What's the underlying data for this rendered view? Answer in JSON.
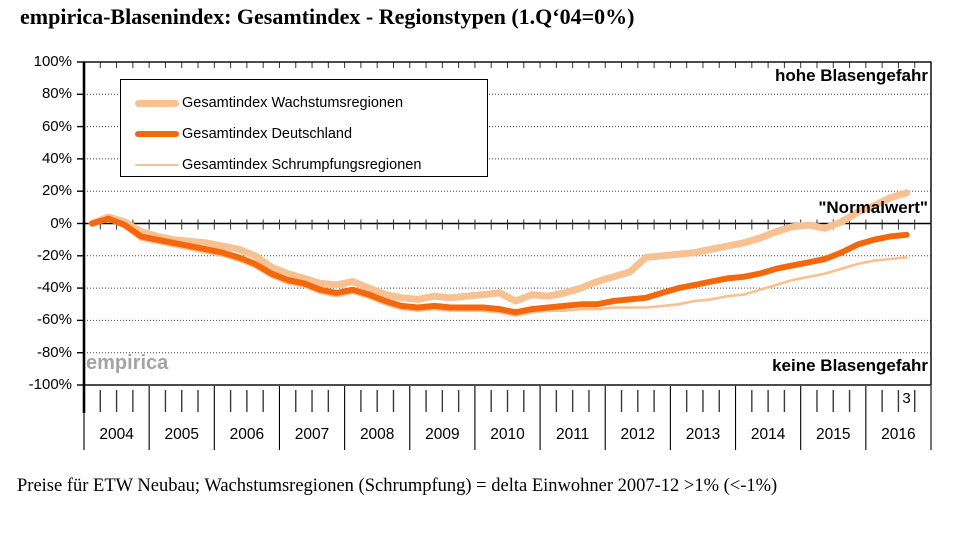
{
  "title": "empirica-Blasenindex: Gesamtindex - Regionstypen (1.Q‘04=0%)",
  "footnote": "Preise für ETW Neubau; Wachstumsregionen (Schrumpfung) = delta Einwohner 2007-12 >1% (<-1%)",
  "watermark": "empirica",
  "annotations": {
    "top_right": "hohe Blasengefahr",
    "normal_value": "\"Normalwert\"",
    "bottom_right": "keine Blasengefahr",
    "last_quarter_label": "3"
  },
  "chart_data": {
    "type": "line",
    "title": "empirica-Blasenindex: Gesamtindex - Regionstypen (1.Q‘04=0%)",
    "x_unit": "quarters",
    "x_start": "2004 Q1",
    "x_end": "2016 Q3",
    "year_labels": [
      "2004",
      "2005",
      "2006",
      "2007",
      "2008",
      "2009",
      "2010",
      "2011",
      "2012",
      "2013",
      "2014",
      "2015",
      "2016"
    ],
    "y_tick_labels": [
      "100%",
      "80%",
      "60%",
      "40%",
      "20%",
      "0%",
      "-20%",
      "-40%",
      "-60%",
      "-80%",
      "-100%"
    ],
    "ylim": [
      -100,
      100
    ],
    "ytick_step": 20,
    "grid": "horizontal dotted, solid zero line",
    "legend_position": "top-left box",
    "series": [
      {
        "name": "Gesamtindex Wachstumsregionen",
        "color": "#F8C191",
        "width": 7,
        "values": [
          0,
          4,
          1,
          -5,
          -8,
          -10,
          -11,
          -12,
          -14,
          -16,
          -20,
          -27,
          -31,
          -34,
          -37,
          -38,
          -36,
          -40,
          -44,
          -46,
          -47,
          -45,
          -46,
          -45,
          -44,
          -43,
          -48,
          -44,
          -45,
          -43,
          -40,
          -36,
          -33,
          -30,
          -21,
          -20,
          -19,
          -18,
          -16,
          -14,
          -12,
          -9,
          -5,
          -2,
          -1,
          -3,
          1,
          7,
          11,
          16,
          19
        ]
      },
      {
        "name": "Gesamtindex Deutschland",
        "color": "#F3680D",
        "width": 6,
        "values": [
          0,
          3,
          -1,
          -8,
          -10,
          -12,
          -14,
          -16,
          -18,
          -21,
          -25,
          -31,
          -35,
          -37,
          -41,
          -43,
          -41,
          -44,
          -48,
          -51,
          -52,
          -51,
          -52,
          -52,
          -52,
          -53,
          -55,
          -53,
          -52,
          -51,
          -50,
          -50,
          -48,
          -47,
          -46,
          -43,
          -40,
          -38,
          -36,
          -34,
          -33,
          -31,
          -28,
          -26,
          -24,
          -22,
          -18,
          -13,
          -10,
          -8,
          -7
        ]
      },
      {
        "name": "Gesamtindex Schrumpfungsregionen",
        "color": "#F8C191",
        "width": 2.6,
        "values": [
          0,
          2,
          -2,
          -10,
          -12,
          -14,
          -16,
          -18,
          -20,
          -23,
          -27,
          -33,
          -37,
          -39,
          -43,
          -45,
          -43,
          -46,
          -50,
          -53,
          -54,
          -53,
          -54,
          -54,
          -54,
          -55,
          -57,
          -55,
          -54,
          -54,
          -53,
          -53,
          -52,
          -52,
          -52,
          -51,
          -50,
          -48,
          -47,
          -45,
          -44,
          -41,
          -38,
          -35,
          -33,
          -31,
          -28,
          -25,
          -23,
          -22,
          -21
        ]
      }
    ]
  }
}
